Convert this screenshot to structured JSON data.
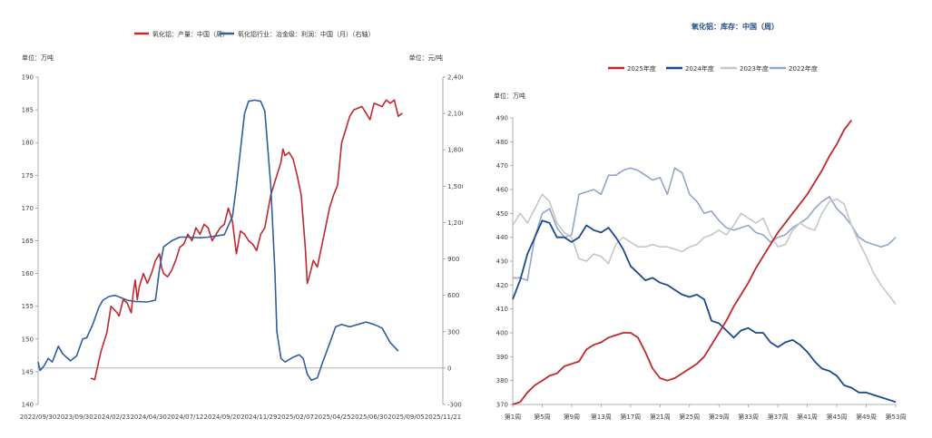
{
  "chart_data": [
    {
      "type": "line",
      "title": "",
      "legend": [
        "氧化铝：产量：中国（周）",
        "氧化铝行业：冶金级：利润：中国（月）（右轴）"
      ],
      "left_unit": "单位：万吨",
      "right_unit": "单位：元/吨",
      "x_ticks": [
        "2022/09/30",
        "2023/09/30",
        "2024/02/23",
        "2024/04/30",
        "2024/07/12",
        "2024/09/20",
        "2024/11/29",
        "2025/02/07",
        "2025/04/25",
        "2025/06/30",
        "2025/09/05",
        "2025/11/21"
      ],
      "y_left_ticks": [
        "140",
        "145",
        "150",
        "155",
        "160",
        "165",
        "170",
        "175",
        "180",
        "185",
        "190"
      ],
      "y_right_ticks": [
        "-300",
        "0",
        "300",
        "600",
        "900",
        "1,200",
        "1,500",
        "1,800",
        "2,100",
        "2,400"
      ],
      "ylim_left": [
        140,
        190
      ],
      "ylim_right": [
        -300,
        2400
      ],
      "colors": [
        "#c0282d",
        "#2f5f9e"
      ],
      "series": [
        {
          "name": "氧化铝：产量：中国（周）",
          "axis": "left",
          "color": "#c0282d",
          "points": [
            [
              0.13,
              144
            ],
            [
              0.14,
              143.8
            ],
            [
              0.155,
              148
            ],
            [
              0.17,
              151
            ],
            [
              0.18,
              155
            ],
            [
              0.195,
              154
            ],
            [
              0.2,
              153.5
            ],
            [
              0.21,
              156
            ],
            [
              0.22,
              155.5
            ],
            [
              0.23,
              154
            ],
            [
              0.235,
              157
            ],
            [
              0.24,
              159
            ],
            [
              0.245,
              156
            ],
            [
              0.25,
              158
            ],
            [
              0.26,
              160
            ],
            [
              0.27,
              158.5
            ],
            [
              0.28,
              160
            ],
            [
              0.29,
              162
            ],
            [
              0.3,
              163
            ],
            [
              0.305,
              161
            ],
            [
              0.31,
              160
            ],
            [
              0.32,
              159.5
            ],
            [
              0.33,
              160.5
            ],
            [
              0.34,
              162
            ],
            [
              0.35,
              164
            ],
            [
              0.36,
              164.5
            ],
            [
              0.37,
              166
            ],
            [
              0.38,
              165
            ],
            [
              0.39,
              167
            ],
            [
              0.4,
              166
            ],
            [
              0.41,
              167.5
            ],
            [
              0.42,
              167
            ],
            [
              0.43,
              165
            ],
            [
              0.44,
              166
            ],
            [
              0.45,
              167
            ],
            [
              0.46,
              167.5
            ],
            [
              0.47,
              170
            ],
            [
              0.48,
              168
            ],
            [
              0.49,
              163
            ],
            [
              0.5,
              166.5
            ],
            [
              0.51,
              166
            ],
            [
              0.52,
              165
            ],
            [
              0.53,
              164.5
            ],
            [
              0.54,
              163.5
            ],
            [
              0.55,
              166
            ],
            [
              0.56,
              167
            ],
            [
              0.575,
              172
            ],
            [
              0.59,
              175
            ],
            [
              0.6,
              177
            ],
            [
              0.605,
              179
            ],
            [
              0.61,
              178
            ],
            [
              0.62,
              178.5
            ],
            [
              0.63,
              177.5
            ],
            [
              0.64,
              175
            ],
            [
              0.65,
              172
            ],
            [
              0.66,
              164
            ],
            [
              0.665,
              158.5
            ],
            [
              0.67,
              159.5
            ],
            [
              0.68,
              162
            ],
            [
              0.69,
              161
            ],
            [
              0.7,
              164
            ],
            [
              0.71,
              167
            ],
            [
              0.72,
              170
            ],
            [
              0.73,
              172
            ],
            [
              0.74,
              173.5
            ],
            [
              0.75,
              180
            ],
            [
              0.76,
              182
            ],
            [
              0.77,
              184
            ],
            [
              0.78,
              185
            ],
            [
              0.8,
              185.5
            ],
            [
              0.81,
              184.5
            ],
            [
              0.82,
              183.5
            ],
            [
              0.83,
              186
            ],
            [
              0.85,
              185.5
            ],
            [
              0.86,
              186.5
            ],
            [
              0.87,
              186
            ],
            [
              0.88,
              186.5
            ],
            [
              0.89,
              184
            ],
            [
              0.9,
              184.5
            ]
          ]
        },
        {
          "name": "氧化铝行业：冶金级：利润：中国（月）（右轴）",
          "axis": "right",
          "color": "#2f5f9e",
          "points": [
            [
              0,
              50
            ],
            [
              0.005,
              -20
            ],
            [
              0.015,
              20
            ],
            [
              0.025,
              80
            ],
            [
              0.035,
              50
            ],
            [
              0.05,
              180
            ],
            [
              0.06,
              120
            ],
            [
              0.07,
              90
            ],
            [
              0.08,
              60
            ],
            [
              0.095,
              100
            ],
            [
              0.11,
              240
            ],
            [
              0.12,
              250
            ],
            [
              0.135,
              360
            ],
            [
              0.15,
              500
            ],
            [
              0.16,
              560
            ],
            [
              0.175,
              590
            ],
            [
              0.19,
              600
            ],
            [
              0.205,
              580
            ],
            [
              0.22,
              560
            ],
            [
              0.24,
              550
            ],
            [
              0.27,
              545
            ],
            [
              0.29,
              560
            ],
            [
              0.3,
              820
            ],
            [
              0.31,
              1000
            ],
            [
              0.33,
              1050
            ],
            [
              0.35,
              1080
            ],
            [
              0.37,
              1080
            ],
            [
              0.4,
              1075
            ],
            [
              0.42,
              1080
            ],
            [
              0.44,
              1090
            ],
            [
              0.46,
              1100
            ],
            [
              0.48,
              1250
            ],
            [
              0.49,
              1500
            ],
            [
              0.5,
              1800
            ],
            [
              0.51,
              2100
            ],
            [
              0.52,
              2200
            ],
            [
              0.535,
              2210
            ],
            [
              0.55,
              2200
            ],
            [
              0.56,
              2120
            ],
            [
              0.575,
              1500
            ],
            [
              0.585,
              800
            ],
            [
              0.59,
              300
            ],
            [
              0.6,
              80
            ],
            [
              0.61,
              50
            ],
            [
              0.63,
              90
            ],
            [
              0.645,
              110
            ],
            [
              0.655,
              80
            ],
            [
              0.665,
              -50
            ],
            [
              0.675,
              -100
            ],
            [
              0.69,
              -80
            ],
            [
              0.7,
              20
            ],
            [
              0.72,
              200
            ],
            [
              0.735,
              340
            ],
            [
              0.75,
              360
            ],
            [
              0.77,
              340
            ],
            [
              0.79,
              360
            ],
            [
              0.81,
              380
            ],
            [
              0.83,
              360
            ],
            [
              0.85,
              330
            ],
            [
              0.87,
              210
            ],
            [
              0.89,
              140
            ]
          ]
        }
      ]
    },
    {
      "type": "line",
      "title": "氧化铝：库存：中国（周）",
      "unit": "单位：万吨",
      "x_ticks": [
        "第1周",
        "第5周",
        "第9周",
        "第13周",
        "第17周",
        "第21周",
        "第25周",
        "第29周",
        "第33周",
        "第37周",
        "第41周",
        "第45周",
        "第49周",
        "第53周"
      ],
      "y_ticks": [
        "370",
        "380",
        "390",
        "400",
        "410",
        "420",
        "430",
        "440",
        "450",
        "460",
        "470",
        "480",
        "490"
      ],
      "ylim": [
        370,
        490
      ],
      "xlim": [
        1,
        53
      ],
      "series": [
        {
          "name": "2025年度",
          "color": "#c0282d",
          "x": [
            1,
            2,
            3,
            4,
            5,
            6,
            7,
            8,
            9,
            10,
            11,
            12,
            13,
            14,
            15,
            16,
            17,
            18,
            19,
            20,
            21,
            22,
            23,
            24,
            25,
            26,
            27,
            28,
            29,
            30,
            31,
            32,
            33,
            34,
            35,
            36,
            37,
            38,
            39,
            40,
            41,
            42,
            43,
            44,
            45,
            46,
            47
          ],
          "values": [
            370,
            371,
            375,
            378,
            380,
            382,
            383,
            386,
            387,
            388,
            393,
            395,
            396,
            398,
            399,
            400,
            400,
            398,
            392,
            385,
            381,
            380,
            381,
            383,
            385,
            387,
            390,
            395,
            400,
            405,
            411,
            416,
            421,
            427,
            432,
            437,
            442,
            446,
            450,
            454,
            458,
            463,
            468,
            474,
            479,
            485,
            489
          ]
        },
        {
          "name": "2024年度",
          "color": "#1a4a8c",
          "x": [
            1,
            2,
            3,
            4,
            5,
            6,
            7,
            8,
            9,
            10,
            11,
            12,
            13,
            14,
            15,
            16,
            17,
            18,
            19,
            20,
            21,
            22,
            23,
            24,
            25,
            26,
            27,
            28,
            29,
            30,
            31,
            32,
            33,
            34,
            35,
            36,
            37,
            38,
            39,
            40,
            41,
            42,
            43,
            44,
            45,
            46,
            47,
            48,
            49,
            50,
            51,
            52,
            53
          ],
          "values": [
            414,
            422,
            433,
            440,
            447,
            446,
            440,
            440,
            438,
            440,
            445,
            443,
            442,
            444,
            440,
            435,
            428,
            425,
            422,
            423,
            421,
            420,
            418,
            416,
            415,
            416,
            414,
            405,
            404,
            401,
            398,
            401,
            402,
            400,
            400,
            396,
            394,
            396,
            397,
            395,
            392,
            388,
            385,
            384,
            382,
            378,
            377,
            375,
            375,
            374,
            373,
            372,
            371
          ]
        },
        {
          "name": "2023年度",
          "color": "#c6c6c6",
          "x": [
            1,
            2,
            3,
            4,
            5,
            6,
            7,
            8,
            9,
            10,
            11,
            12,
            13,
            14,
            15,
            16,
            17,
            18,
            19,
            20,
            21,
            22,
            23,
            24,
            25,
            26,
            27,
            28,
            29,
            30,
            31,
            32,
            33,
            34,
            35,
            36,
            37,
            38,
            39,
            40,
            41,
            42,
            43,
            44,
            45,
            46,
            47,
            48,
            49,
            50,
            51,
            52,
            53
          ],
          "values": [
            445,
            450,
            446,
            452,
            458,
            455,
            446,
            442,
            440,
            431,
            430,
            433,
            432,
            429,
            437,
            440,
            438,
            436,
            436,
            437,
            436,
            436,
            435,
            434,
            436,
            437,
            440,
            441,
            443,
            441,
            445,
            450,
            448,
            446,
            448,
            441,
            436,
            437,
            443,
            446,
            444,
            443,
            450,
            455,
            456,
            454,
            445,
            438,
            432,
            425,
            420,
            416,
            412
          ]
        },
        {
          "name": "2022年度",
          "color": "#91a6c9",
          "x": [
            1,
            2,
            3,
            4,
            5,
            6,
            7,
            8,
            9,
            10,
            11,
            12,
            13,
            14,
            15,
            16,
            17,
            18,
            19,
            20,
            21,
            22,
            23,
            24,
            25,
            26,
            27,
            28,
            29,
            30,
            31,
            32,
            33,
            34,
            35,
            36,
            37,
            38,
            39,
            40,
            41,
            42,
            43,
            44,
            45,
            46,
            47,
            48,
            49,
            50,
            51,
            52,
            53
          ],
          "values": [
            423,
            423,
            422,
            440,
            450,
            452,
            444,
            440,
            441,
            458,
            459,
            460,
            458,
            466,
            466,
            468,
            469,
            468,
            466,
            464,
            465,
            458,
            469,
            467,
            458,
            455,
            450,
            451,
            447,
            444,
            443,
            444,
            445,
            442,
            441,
            438,
            440,
            441,
            444,
            446,
            448,
            452,
            455,
            457,
            452,
            449,
            445,
            440,
            438,
            437,
            436,
            437,
            440
          ]
        }
      ]
    }
  ]
}
